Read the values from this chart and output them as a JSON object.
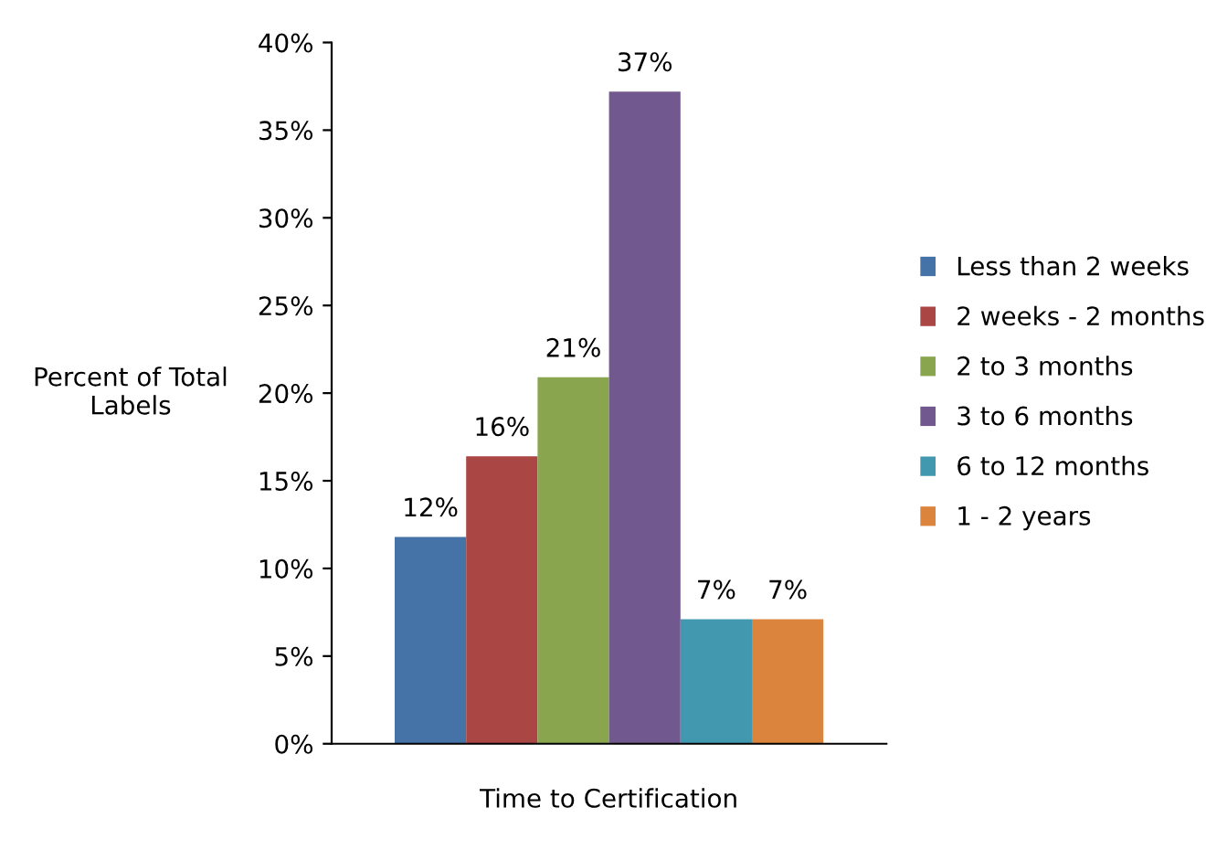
{
  "chart_data": {
    "type": "bar",
    "xlabel": "Time to Certification",
    "ylabel": "Percent of Total\nLabels",
    "categories": [
      null
    ],
    "series": [
      {
        "name": "Less than 2 weeks",
        "color": "#4572a7",
        "values": [
          11.8
        ],
        "value_labels": [
          "12%"
        ]
      },
      {
        "name": "2 weeks - 2 months",
        "color": "#aa4643",
        "values": [
          16.4
        ],
        "value_labels": [
          "16%"
        ]
      },
      {
        "name": "2 to 3 months",
        "color": "#89a54e",
        "values": [
          20.9
        ],
        "value_labels": [
          "21%"
        ]
      },
      {
        "name": "3 to 6 months",
        "color": "#71588f",
        "values": [
          37.2
        ],
        "value_labels": [
          "37%"
        ]
      },
      {
        "name": "6 to 12 months",
        "color": "#4198af",
        "values": [
          7.1
        ],
        "value_labels": [
          "7%"
        ]
      },
      {
        "name": "1 - 2 years",
        "color": "#db843d",
        "values": [
          7.1
        ],
        "value_labels": [
          "7%"
        ]
      }
    ],
    "ylim": [
      0,
      40
    ],
    "yticks": [
      {
        "value": 0,
        "label": "0%"
      },
      {
        "value": 5,
        "label": "5%"
      },
      {
        "value": 10,
        "label": "10%"
      },
      {
        "value": 15,
        "label": "15%"
      },
      {
        "value": 20,
        "label": "20%"
      },
      {
        "value": 25,
        "label": "25%"
      },
      {
        "value": 30,
        "label": "30%"
      },
      {
        "value": 35,
        "label": "35%"
      },
      {
        "value": 40,
        "label": "40%"
      }
    ],
    "grid": false,
    "legend": "right"
  }
}
